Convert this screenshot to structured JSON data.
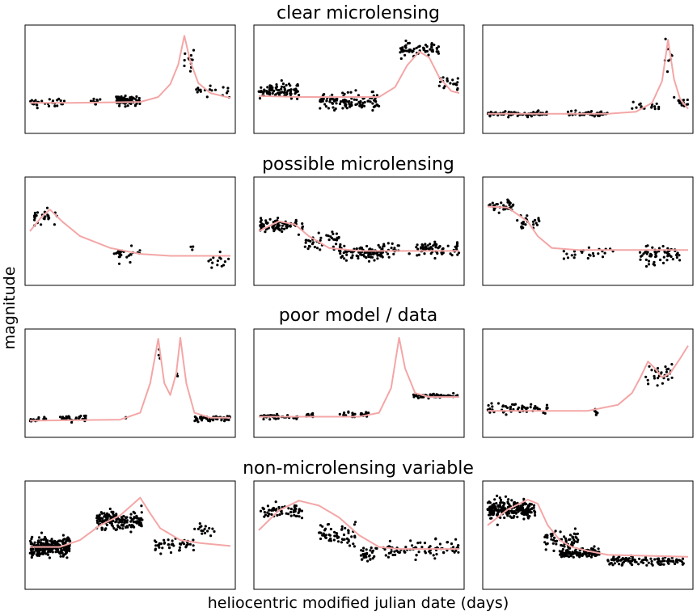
{
  "figure": {
    "xlabel": "heliocentric modified julian date (days)",
    "ylabel": "magnitude",
    "point_color": "#000000",
    "model_color": "#f4a6a6"
  },
  "chart_data": {
    "type": "scatter",
    "note_axes": "Each panel is unlabeled with no ticks; values are in relative units (x: 0-1 time fraction, y: 0-1 brightness, higher = brighter).",
    "rows": [
      {
        "title": "clear microlensing",
        "panels": [
          {
            "model": [
              [
                0.0,
                0.26
              ],
              [
                0.2,
                0.26
              ],
              [
                0.55,
                0.27
              ],
              [
                0.64,
                0.32
              ],
              [
                0.7,
                0.45
              ],
              [
                0.74,
                0.65
              ],
              [
                0.77,
                0.94
              ],
              [
                0.8,
                0.68
              ],
              [
                0.84,
                0.46
              ],
              [
                0.9,
                0.36
              ],
              [
                1.0,
                0.31
              ]
            ],
            "segments": [
              [
                0.0,
                0.18,
                0.26,
                0.05,
                30
              ],
              [
                0.3,
                0.35,
                0.27,
                0.05,
                10
              ],
              [
                0.43,
                0.55,
                0.28,
                0.06,
                85
              ],
              [
                0.76,
                0.82,
                0.7,
                0.12,
                12
              ],
              [
                0.82,
                1.0,
                0.38,
                0.06,
                18
              ]
            ]
          },
          {
            "model": [
              [
                0.0,
                0.33
              ],
              [
                0.2,
                0.32
              ],
              [
                0.6,
                0.32
              ],
              [
                0.68,
                0.42
              ],
              [
                0.74,
                0.64
              ],
              [
                0.8,
                0.78
              ],
              [
                0.85,
                0.72
              ],
              [
                0.9,
                0.52
              ],
              [
                0.96,
                0.38
              ],
              [
                1.0,
                0.36
              ]
            ],
            "segments": [
              [
                0.0,
                0.2,
                0.38,
                0.08,
                90
              ],
              [
                0.3,
                0.6,
                0.28,
                0.09,
                110
              ],
              [
                0.7,
                0.9,
                0.8,
                0.08,
                60
              ],
              [
                0.9,
                1.0,
                0.45,
                0.07,
                20
              ]
            ]
          },
          {
            "model": [
              [
                0.0,
                0.15
              ],
              [
                0.6,
                0.15
              ],
              [
                0.74,
                0.17
              ],
              [
                0.82,
                0.26
              ],
              [
                0.87,
                0.48
              ],
              [
                0.9,
                0.9
              ],
              [
                0.93,
                0.5
              ],
              [
                0.96,
                0.3
              ],
              [
                1.0,
                0.2
              ]
            ],
            "segments": [
              [
                0.0,
                0.3,
                0.15,
                0.03,
                80
              ],
              [
                0.4,
                0.6,
                0.15,
                0.03,
                50
              ],
              [
                0.72,
                0.86,
                0.22,
                0.04,
                18
              ],
              [
                0.88,
                0.92,
                0.75,
                0.15,
                8
              ],
              [
                0.93,
                1.0,
                0.26,
                0.05,
                14
              ]
            ]
          }
        ]
      },
      {
        "title": "possible microlensing",
        "panels": [
          {
            "model": [
              [
                0.0,
                0.5
              ],
              [
                0.06,
                0.65
              ],
              [
                0.1,
                0.72
              ],
              [
                0.16,
                0.6
              ],
              [
                0.25,
                0.45
              ],
              [
                0.4,
                0.33
              ],
              [
                0.55,
                0.27
              ],
              [
                0.7,
                0.25
              ],
              [
                1.0,
                0.25
              ]
            ],
            "segments": [
              [
                0.02,
                0.14,
                0.66,
                0.1,
                28
              ],
              [
                0.42,
                0.55,
                0.28,
                0.08,
                28
              ],
              [
                0.8,
                0.82,
                0.35,
                0.04,
                3
              ],
              [
                0.88,
                1.0,
                0.2,
                0.09,
                14
              ]
            ]
          },
          {
            "model": [
              [
                0.0,
                0.5
              ],
              [
                0.1,
                0.6
              ],
              [
                0.18,
                0.57
              ],
              [
                0.25,
                0.45
              ],
              [
                0.35,
                0.33
              ],
              [
                0.5,
                0.3
              ],
              [
                1.0,
                0.3
              ]
            ],
            "segments": [
              [
                0.0,
                0.22,
                0.56,
                0.07,
                80
              ],
              [
                0.22,
                0.4,
                0.4,
                0.09,
                40
              ],
              [
                0.4,
                0.62,
                0.28,
                0.08,
                100
              ],
              [
                0.62,
                0.7,
                0.32,
                0.07,
                20
              ],
              [
                0.75,
                1.0,
                0.32,
                0.09,
                70
              ]
            ]
          },
          {
            "model": [
              [
                0.0,
                0.75
              ],
              [
                0.1,
                0.74
              ],
              [
                0.2,
                0.6
              ],
              [
                0.25,
                0.45
              ],
              [
                0.32,
                0.33
              ],
              [
                0.45,
                0.31
              ],
              [
                1.0,
                0.31
              ]
            ],
            "segments": [
              [
                0.0,
                0.13,
                0.76,
                0.07,
                40
              ],
              [
                0.14,
                0.26,
                0.6,
                0.1,
                25
              ],
              [
                0.37,
                0.63,
                0.28,
                0.1,
                25
              ],
              [
                0.76,
                0.96,
                0.27,
                0.12,
                60
              ]
            ]
          }
        ]
      },
      {
        "title": "poor model / data",
        "panels": [
          {
            "model": [
              [
                0.0,
                0.12
              ],
              [
                0.45,
                0.13
              ],
              [
                0.55,
                0.2
              ],
              [
                0.6,
                0.5
              ],
              [
                0.64,
                0.95
              ],
              [
                0.67,
                0.5
              ],
              [
                0.7,
                0.38
              ],
              [
                0.73,
                0.6
              ],
              [
                0.75,
                0.96
              ],
              [
                0.78,
                0.5
              ],
              [
                0.82,
                0.2
              ],
              [
                0.9,
                0.15
              ],
              [
                1.0,
                0.15
              ]
            ],
            "segments": [
              [
                0.0,
                0.08,
                0.13,
                0.03,
                18
              ],
              [
                0.15,
                0.28,
                0.15,
                0.04,
                30
              ],
              [
                0.47,
                0.48,
                0.15,
                0.02,
                2
              ],
              [
                0.64,
                0.65,
                0.8,
                0.06,
                4
              ],
              [
                0.73,
                0.74,
                0.6,
                0.04,
                3
              ],
              [
                0.82,
                1.0,
                0.14,
                0.03,
                50
              ]
            ]
          },
          {
            "model": [
              [
                0.0,
                0.16
              ],
              [
                0.5,
                0.16
              ],
              [
                0.6,
                0.2
              ],
              [
                0.66,
                0.45
              ],
              [
                0.7,
                0.96
              ],
              [
                0.73,
                0.65
              ],
              [
                0.78,
                0.4
              ],
              [
                0.85,
                0.36
              ],
              [
                1.0,
                0.36
              ]
            ],
            "segments": [
              [
                0.0,
                0.2,
                0.16,
                0.03,
                40
              ],
              [
                0.23,
                0.27,
                0.18,
                0.03,
                8
              ],
              [
                0.4,
                0.55,
                0.18,
                0.03,
                25
              ],
              [
                0.76,
                1.0,
                0.37,
                0.03,
                60
              ]
            ]
          },
          {
            "model": [
              [
                0.0,
                0.22
              ],
              [
                0.5,
                0.22
              ],
              [
                0.65,
                0.28
              ],
              [
                0.72,
                0.4
              ],
              [
                0.76,
                0.55
              ],
              [
                0.8,
                0.72
              ],
              [
                0.83,
                0.66
              ],
              [
                0.87,
                0.56
              ],
              [
                0.91,
                0.6
              ],
              [
                0.96,
                0.75
              ],
              [
                1.0,
                0.88
              ]
            ],
            "segments": [
              [
                0.0,
                0.3,
                0.25,
                0.06,
                55
              ],
              [
                0.53,
                0.55,
                0.22,
                0.06,
                8
              ],
              [
                0.78,
                0.92,
                0.6,
                0.12,
                30
              ]
            ]
          }
        ]
      },
      {
        "title": "non-microlensing variable",
        "panels": [
          {
            "model": [
              [
                0.0,
                0.38
              ],
              [
                0.15,
                0.38
              ],
              [
                0.25,
                0.45
              ],
              [
                0.35,
                0.6
              ],
              [
                0.45,
                0.7
              ],
              [
                0.55,
                0.88
              ],
              [
                0.6,
                0.72
              ],
              [
                0.65,
                0.57
              ],
              [
                0.75,
                0.45
              ],
              [
                0.85,
                0.42
              ],
              [
                1.0,
                0.39
              ]
            ],
            "segments": [
              [
                0.0,
                0.2,
                0.38,
                0.1,
                260
              ],
              [
                0.33,
                0.56,
                0.65,
                0.1,
                170
              ],
              [
                0.62,
                0.82,
                0.4,
                0.08,
                45
              ],
              [
                0.82,
                0.94,
                0.55,
                0.06,
                16
              ]
            ]
          },
          {
            "model": [
              [
                0.0,
                0.55
              ],
              [
                0.1,
                0.75
              ],
              [
                0.2,
                0.85
              ],
              [
                0.3,
                0.8
              ],
              [
                0.4,
                0.68
              ],
              [
                0.5,
                0.5
              ],
              [
                0.6,
                0.38
              ],
              [
                0.7,
                0.36
              ],
              [
                1.0,
                0.36
              ]
            ],
            "segments": [
              [
                0.0,
                0.22,
                0.75,
                0.08,
                60
              ],
              [
                0.3,
                0.5,
                0.5,
                0.12,
                60
              ],
              [
                0.5,
                0.6,
                0.3,
                0.08,
                30
              ],
              [
                0.62,
                1.0,
                0.36,
                0.1,
                80
              ]
            ]
          },
          {
            "model": [
              [
                0.0,
                0.6
              ],
              [
                0.1,
                0.76
              ],
              [
                0.2,
                0.86
              ],
              [
                0.25,
                0.82
              ],
              [
                0.3,
                0.6
              ],
              [
                0.36,
                0.45
              ],
              [
                0.42,
                0.38
              ],
              [
                0.5,
                0.34
              ],
              [
                0.6,
                0.3
              ],
              [
                1.0,
                0.28
              ]
            ],
            "segments": [
              [
                0.0,
                0.24,
                0.76,
                0.1,
                230
              ],
              [
                0.28,
                0.46,
                0.45,
                0.1,
                60
              ],
              [
                0.36,
                0.56,
                0.32,
                0.05,
                120
              ],
              [
                0.6,
                0.98,
                0.24,
                0.05,
                110
              ]
            ]
          }
        ]
      }
    ]
  }
}
